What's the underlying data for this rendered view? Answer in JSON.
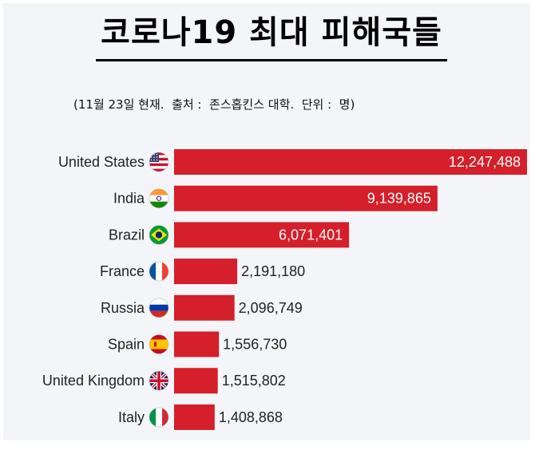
{
  "title": "코로나19 최대 피해국들",
  "subtitle": "(11월 23일 현재.  출처 :  존스홉킨스 대학.  단위 :  명)",
  "colors": {
    "bar": "#d51f2a",
    "background": "#f4f5f9",
    "label_dark": "#222222",
    "label_light": "#ffffff"
  },
  "chart_data": {
    "type": "bar",
    "orientation": "horizontal",
    "categories": [
      "United States",
      "India",
      "Brazil",
      "France",
      "Russia",
      "Spain",
      "United Kingdom",
      "Italy"
    ],
    "values": [
      12247488,
      9139865,
      6071401,
      2191180,
      2096749,
      1556730,
      1515802,
      1408868
    ],
    "value_labels": [
      "12,247,488",
      "9,139,865",
      "6,071,401",
      "2,191,180",
      "2,096,749",
      "1,556,730",
      "1,515,802",
      "1,408,868"
    ],
    "flags": [
      "us-flag-icon",
      "india-flag-icon",
      "brazil-flag-icon",
      "france-flag-icon",
      "russia-flag-icon",
      "spain-flag-icon",
      "uk-flag-icon",
      "italy-flag-icon"
    ],
    "xlim": [
      0,
      12500000
    ],
    "grid": false,
    "legend": "none"
  }
}
